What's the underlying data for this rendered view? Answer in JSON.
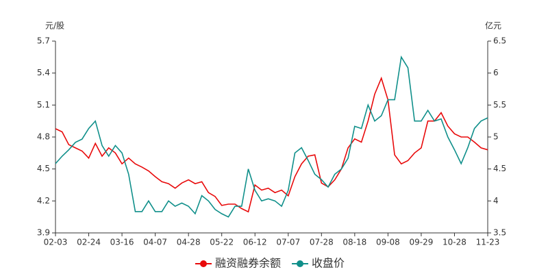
{
  "chart_data": {
    "type": "line",
    "y_label": "元/股",
    "y2_label": "亿元",
    "categories": [
      "02-03",
      null,
      null,
      null,
      null,
      "02-24",
      null,
      null,
      null,
      null,
      "03-16",
      null,
      null,
      null,
      null,
      "04-07",
      null,
      null,
      null,
      null,
      "04-28",
      null,
      null,
      null,
      null,
      "05-22",
      null,
      null,
      null,
      null,
      "06-12",
      null,
      null,
      null,
      null,
      "07-07",
      null,
      null,
      null,
      null,
      "07-28",
      null,
      null,
      null,
      null,
      "08-18",
      null,
      null,
      null,
      null,
      "09-08",
      null,
      null,
      null,
      null,
      "09-29",
      null,
      null,
      null,
      null,
      "10-28",
      null,
      null,
      null,
      null,
      "11-23"
    ],
    "series": [
      {
        "name": "融资融券余额",
        "color": "#e8090a",
        "axis": "y2",
        "values": [
          5.13,
          5.08,
          4.88,
          4.83,
          4.78,
          4.67,
          4.9,
          4.7,
          4.83,
          4.75,
          4.58,
          4.67,
          4.58,
          4.53,
          4.47,
          4.38,
          4.3,
          4.27,
          4.2,
          4.28,
          4.33,
          4.27,
          4.3,
          4.13,
          4.07,
          3.93,
          3.95,
          3.95,
          3.88,
          3.83,
          4.25,
          4.17,
          4.2,
          4.13,
          4.17,
          4.08,
          4.38,
          4.58,
          4.7,
          4.72,
          4.28,
          4.22,
          4.33,
          4.5,
          4.83,
          4.97,
          4.92,
          5.25,
          5.67,
          5.92,
          5.58,
          4.72,
          4.58,
          4.63,
          4.75,
          4.83,
          5.25,
          5.25,
          5.38,
          5.17,
          5.05,
          5.0,
          5.0,
          4.92,
          4.83,
          4.8
        ]
      },
      {
        "name": "收盘价",
        "color": "#0f8f8a",
        "axis": "y",
        "values": [
          4.55,
          4.62,
          4.68,
          4.75,
          4.78,
          4.88,
          4.95,
          4.72,
          4.62,
          4.72,
          4.65,
          4.45,
          4.1,
          4.1,
          4.2,
          4.1,
          4.1,
          4.2,
          4.15,
          4.18,
          4.15,
          4.08,
          4.25,
          4.2,
          4.12,
          4.08,
          4.05,
          4.15,
          4.15,
          4.5,
          4.3,
          4.2,
          4.22,
          4.2,
          4.15,
          4.3,
          4.65,
          4.7,
          4.58,
          4.45,
          4.4,
          4.33,
          4.45,
          4.5,
          4.6,
          4.9,
          4.88,
          5.1,
          4.95,
          5.0,
          5.15,
          5.15,
          5.55,
          5.45,
          4.95,
          4.95,
          5.05,
          4.95,
          4.97,
          4.8,
          4.68,
          4.55,
          4.7,
          4.88,
          4.95,
          4.98
        ]
      }
    ],
    "ylim": [
      3.9,
      5.7
    ],
    "yticks": [
      3.9,
      4.2,
      4.5,
      4.8,
      5.1,
      5.4,
      5.7
    ],
    "y2lim": [
      3.5,
      6.5
    ],
    "y2ticks": [
      3.5,
      4,
      4.5,
      5,
      5.5,
      6,
      6.5
    ],
    "legend": "bottom"
  }
}
